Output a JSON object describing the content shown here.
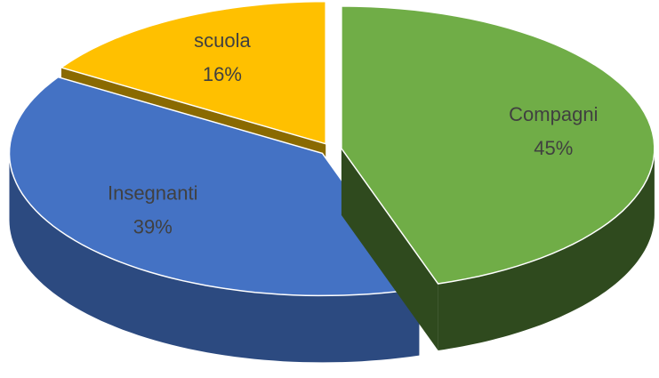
{
  "chart_data": {
    "type": "pie",
    "categories": [
      "Compagni",
      "Insegnanti",
      "scuola"
    ],
    "values": [
      45,
      39,
      16
    ],
    "value_labels": [
      "45%",
      "39%",
      "16%"
    ],
    "colors": [
      "#70ad47",
      "#4472c4",
      "#ffc000"
    ],
    "side_colors": [
      "#2f4a1e",
      "#2c4a80",
      "#8a6a00"
    ]
  }
}
